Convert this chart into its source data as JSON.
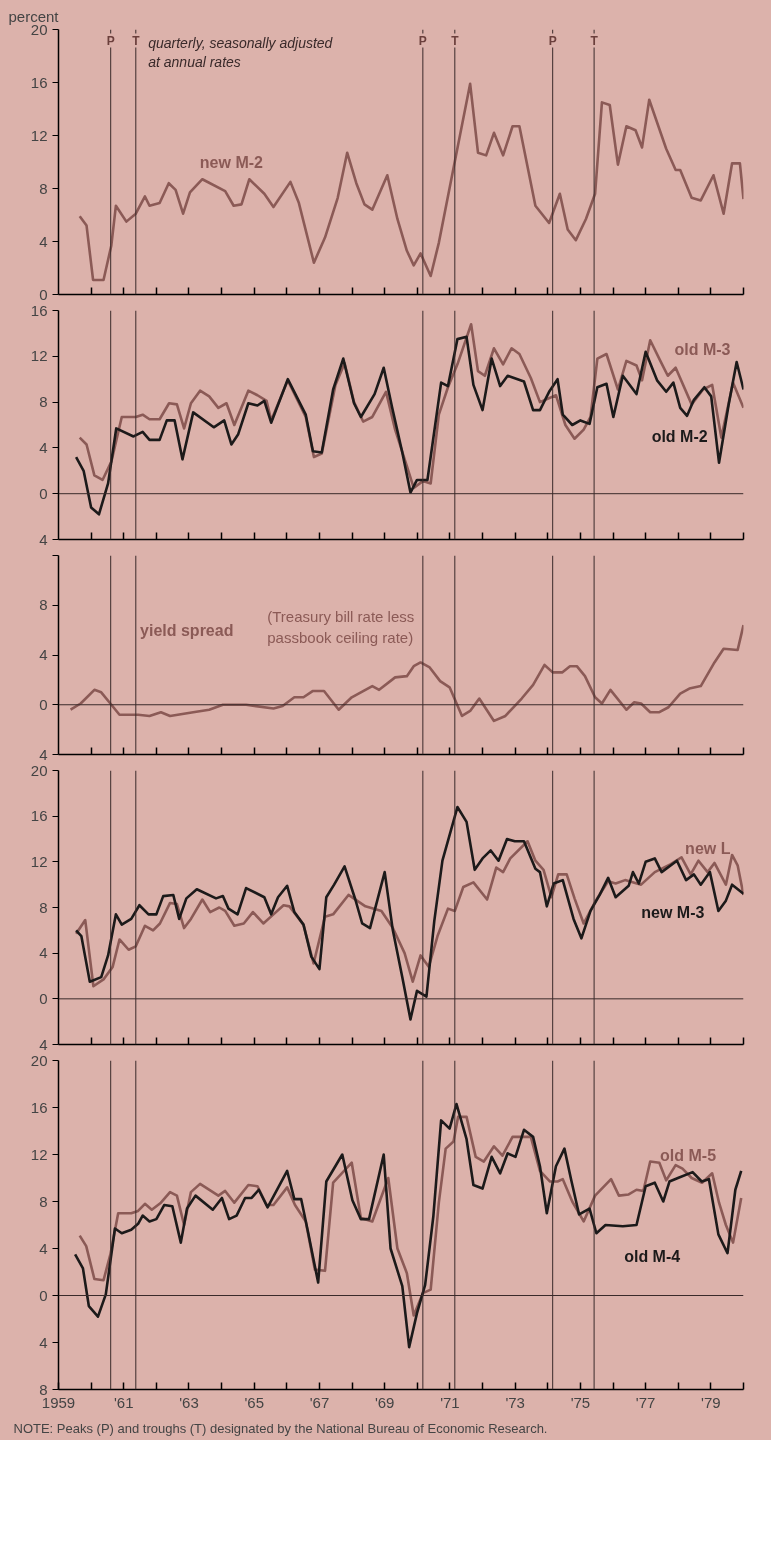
{
  "chart_data": [
    {
      "type": "line",
      "ylabel": "percent",
      "xlim": [
        1959,
        1980
      ],
      "xticks": [
        {
          "value": 1960,
          "label": null
        },
        {
          "value": 1961,
          "label": "'61"
        },
        {
          "value": 1962,
          "label": null
        },
        {
          "value": 1963,
          "label": "'63"
        },
        {
          "value": 1964,
          "label": null
        },
        {
          "value": 1965,
          "label": "'65"
        },
        {
          "value": 1966,
          "label": null
        },
        {
          "value": 1967,
          "label": "'67"
        },
        {
          "value": 1968,
          "label": null
        },
        {
          "value": 1969,
          "label": "'69"
        },
        {
          "value": 1970,
          "label": null
        },
        {
          "value": 1971,
          "label": "'71"
        },
        {
          "value": 1972,
          "label": null
        },
        {
          "value": 1973,
          "label": "'73"
        },
        {
          "value": 1974,
          "label": null
        },
        {
          "value": 1975,
          "label": "'75"
        },
        {
          "value": 1976,
          "label": null
        },
        {
          "value": 1977,
          "label": "'77"
        },
        {
          "value": 1978,
          "label": null
        },
        {
          "value": 1979,
          "label": "'79"
        },
        {
          "value": 1980,
          "label": null
        }
      ],
      "ylim": [
        0,
        20
      ],
      "yticks": [
        0,
        4,
        8,
        12,
        16,
        20
      ],
      "tick_labels": "y",
      "annotations": [
        "quarterly, seasonally adjusted at annual rates"
      ],
      "ref_lines": [
        {
          "axis": "x",
          "value": 1960.6,
          "label": "P"
        },
        {
          "axis": "x",
          "value": 1961.37,
          "label": "T"
        },
        {
          "axis": "x",
          "value": 1970.17,
          "label": "P"
        },
        {
          "axis": "x",
          "value": 1971.15,
          "label": "T"
        },
        {
          "axis": "x",
          "value": 1974.15,
          "label": "P"
        },
        {
          "axis": "x",
          "value": 1975.42,
          "label": "T"
        }
      ],
      "series": [
        {
          "name": "new M-2",
          "color": "#8b5a56",
          "x": [
            1959.65,
            1959.86,
            1960.06,
            1960.38,
            1960.62,
            1960.76,
            1961.08,
            1961.37,
            1961.65,
            1961.79,
            1962.1,
            1962.38,
            1962.59,
            1962.82,
            1963.03,
            1963.41,
            1964.11,
            1964.37,
            1964.61,
            1964.85,
            1965.31,
            1965.59,
            1966.11,
            1966.37,
            1966.83,
            1967.17,
            1967.56,
            1967.85,
            1968.13,
            1968.38,
            1968.62,
            1969.08,
            1969.39,
            1969.68,
            1969.89,
            1970.1,
            1970.41,
            1970.66,
            1971.13,
            1971.62,
            1971.86,
            1972.11,
            1972.35,
            1972.63,
            1972.92,
            1973.13,
            1973.62,
            1974.04,
            1974.37,
            1974.61,
            1974.86,
            1975.17,
            1975.45,
            1975.66,
            1975.9,
            1976.15,
            1976.41,
            1976.69,
            1976.89,
            1977.11,
            1977.63,
            1977.92,
            1978.06,
            1978.41,
            1978.69,
            1979.08,
            1979.39,
            1979.65,
            1979.89,
            1980.0
          ],
          "values": [
            5.9,
            5.2,
            1.1,
            1.1,
            3.7,
            6.7,
            5.5,
            6.1,
            7.4,
            6.7,
            6.9,
            8.4,
            7.9,
            6.1,
            7.7,
            8.7,
            7.8,
            6.7,
            6.8,
            8.7,
            7.6,
            6.6,
            8.5,
            6.9,
            2.4,
            4.3,
            7.3,
            10.7,
            8.4,
            6.8,
            6.4,
            9.0,
            5.7,
            3.3,
            2.2,
            3.1,
            1.4,
            3.9,
            9.8,
            15.9,
            10.7,
            10.5,
            12.2,
            10.5,
            12.7,
            12.7,
            6.7,
            5.4,
            7.6,
            4.9,
            4.1,
            5.7,
            7.6,
            14.5,
            14.3,
            9.8,
            12.7,
            12.4,
            11.1,
            14.7,
            11.0,
            9.4,
            9.4,
            7.3,
            7.1,
            9.0,
            6.1,
            9.9,
            9.9,
            7.2
          ]
        }
      ]
    },
    {
      "type": "line",
      "xlim": [
        1959,
        1980
      ],
      "xticks": [
        {
          "value": 1960,
          "label": null
        },
        {
          "value": 1961,
          "label": "'61"
        },
        {
          "value": 1962,
          "label": null
        },
        {
          "value": 1963,
          "label": "'63"
        },
        {
          "value": 1964,
          "label": null
        },
        {
          "value": 1965,
          "label": "'65"
        },
        {
          "value": 1966,
          "label": null
        },
        {
          "value": 1967,
          "label": "'67"
        },
        {
          "value": 1968,
          "label": null
        },
        {
          "value": 1969,
          "label": "'69"
        },
        {
          "value": 1970,
          "label": null
        },
        {
          "value": 1971,
          "label": "'71"
        },
        {
          "value": 1972,
          "label": null
        },
        {
          "value": 1973,
          "label": "'73"
        },
        {
          "value": 1974,
          "label": null
        },
        {
          "value": 1975,
          "label": "'75"
        },
        {
          "value": 1976,
          "label": null
        },
        {
          "value": 1977,
          "label": "'77"
        },
        {
          "value": 1978,
          "label": null
        },
        {
          "value": 1979,
          "label": "'79"
        },
        {
          "value": 1980,
          "label": null
        }
      ],
      "ylim": [
        -4,
        16
      ],
      "yticks": [
        {
          "value": -4,
          "label": "4"
        },
        0,
        4,
        8,
        12,
        16
      ],
      "tick_labels": "y",
      "ref_lines": [
        {
          "axis": "y",
          "value": 0
        },
        {
          "axis": "x",
          "value": 1960.6
        },
        {
          "axis": "x",
          "value": 1961.37
        },
        {
          "axis": "x",
          "value": 1970.17
        },
        {
          "axis": "x",
          "value": 1971.15
        },
        {
          "axis": "x",
          "value": 1974.15
        },
        {
          "axis": "x",
          "value": 1975.42
        }
      ],
      "series": [
        {
          "name": "old M-3",
          "color": "#8b5a56",
          "x": [
            1959.65,
            1959.86,
            1960.1,
            1960.35,
            1960.62,
            1960.94,
            1961.37,
            1961.58,
            1961.79,
            1962.1,
            1962.39,
            1962.63,
            1962.85,
            1963.06,
            1963.34,
            1963.62,
            1963.9,
            1964.15,
            1964.39,
            1964.82,
            1965.1,
            1965.38,
            1965.52,
            1966.03,
            1966.58,
            1966.83,
            1967.07,
            1967.49,
            1967.77,
            1968.06,
            1968.34,
            1968.62,
            1969.04,
            1969.32,
            1969.68,
            1969.89,
            1970.17,
            1970.41,
            1970.66,
            1970.94,
            1971.23,
            1971.65,
            1971.86,
            1972.07,
            1972.35,
            1972.63,
            1972.89,
            1973.13,
            1973.48,
            1973.76,
            1974.25,
            1974.54,
            1974.82,
            1975.1,
            1975.31,
            1975.52,
            1975.8,
            1976.15,
            1976.41,
            1976.72,
            1976.89,
            1977.14,
            1977.45,
            1977.68,
            1977.92,
            1978.41,
            1978.76,
            1979.04,
            1979.32,
            1979.68,
            1980.0
          ],
          "values": [
            4.9,
            4.3,
            1.6,
            1.2,
            2.8,
            6.7,
            6.7,
            6.9,
            6.5,
            6.5,
            7.9,
            7.8,
            5.7,
            7.9,
            9.0,
            8.5,
            7.5,
            7.9,
            6.0,
            9.0,
            8.6,
            8.1,
            6.4,
            9.9,
            6.7,
            3.2,
            3.5,
            9.5,
            11.4,
            8.0,
            6.3,
            6.7,
            8.9,
            5.6,
            2.4,
            0.5,
            1.1,
            0.9,
            6.9,
            9.3,
            11.3,
            14.8,
            10.7,
            10.3,
            12.7,
            11.3,
            12.7,
            12.2,
            10.1,
            8.0,
            8.6,
            6.0,
            4.8,
            5.6,
            6.7,
            11.8,
            12.2,
            9.1,
            11.6,
            11.2,
            9.9,
            13.4,
            11.6,
            10.3,
            11.0,
            7.8,
            9.1,
            9.5,
            4.9,
            9.7,
            7.5
          ]
        },
        {
          "name": "old M-2",
          "color": "#1c1a1a",
          "x": [
            1959.54,
            1959.77,
            1960.0,
            1960.24,
            1960.52,
            1960.77,
            1961.3,
            1961.58,
            1961.79,
            1962.1,
            1962.32,
            1962.56,
            1962.8,
            1963.13,
            1963.76,
            1964.08,
            1964.3,
            1964.51,
            1964.82,
            1965.1,
            1965.31,
            1965.52,
            1966.03,
            1966.58,
            1966.8,
            1967.07,
            1967.42,
            1967.73,
            1968.06,
            1968.27,
            1968.69,
            1968.97,
            1969.23,
            1969.54,
            1969.79,
            1969.99,
            1970.31,
            1970.73,
            1970.94,
            1971.23,
            1971.51,
            1971.72,
            1972.0,
            1972.28,
            1972.54,
            1972.77,
            1973.27,
            1973.55,
            1973.76,
            1974.04,
            1974.3,
            1974.46,
            1974.75,
            1975.0,
            1975.28,
            1975.52,
            1975.8,
            1976.01,
            1976.3,
            1976.72,
            1977.0,
            1977.35,
            1977.63,
            1977.85,
            1978.06,
            1978.27,
            1978.48,
            1978.8,
            1979.01,
            1979.25,
            1979.54,
            1979.79,
            1980.0
          ],
          "values": [
            3.2,
            2.0,
            -1.2,
            -1.8,
            0.9,
            5.7,
            5.0,
            5.4,
            4.7,
            4.7,
            6.4,
            6.4,
            3.0,
            7.1,
            5.8,
            6.4,
            4.3,
            5.2,
            7.9,
            7.7,
            8.1,
            6.2,
            10.0,
            6.9,
            3.7,
            3.6,
            9.1,
            11.8,
            7.9,
            6.7,
            8.7,
            11.0,
            7.5,
            3.6,
            0.1,
            1.2,
            1.2,
            9.7,
            9.4,
            13.5,
            13.7,
            9.5,
            7.3,
            11.8,
            9.4,
            10.3,
            9.8,
            7.3,
            7.3,
            8.9,
            10.0,
            6.9,
            6.0,
            6.4,
            6.1,
            9.3,
            9.6,
            6.7,
            10.3,
            8.7,
            12.4,
            9.9,
            8.9,
            9.7,
            7.5,
            6.8,
            8.2,
            9.3,
            8.5,
            2.7,
            7.7,
            11.5,
            9.1
          ]
        }
      ]
    },
    {
      "type": "line",
      "xlim": [
        1959,
        1980
      ],
      "xticks": [
        {
          "value": 1960,
          "label": null
        },
        {
          "value": 1961,
          "label": "'61"
        },
        {
          "value": 1962,
          "label": null
        },
        {
          "value": 1963,
          "label": "'63"
        },
        {
          "value": 1964,
          "label": null
        },
        {
          "value": 1965,
          "label": "'65"
        },
        {
          "value": 1966,
          "label": null
        },
        {
          "value": 1967,
          "label": "'67"
        },
        {
          "value": 1968,
          "label": null
        },
        {
          "value": 1969,
          "label": "'69"
        },
        {
          "value": 1970,
          "label": null
        },
        {
          "value": 1971,
          "label": "'71"
        },
        {
          "value": 1972,
          "label": null
        },
        {
          "value": 1973,
          "label": "'73"
        },
        {
          "value": 1974,
          "label": null
        },
        {
          "value": 1975,
          "label": "'75"
        },
        {
          "value": 1976,
          "label": null
        },
        {
          "value": 1977,
          "label": "'77"
        },
        {
          "value": 1978,
          "label": null
        },
        {
          "value": 1979,
          "label": "'79"
        },
        {
          "value": 1980,
          "label": null
        }
      ],
      "ylim": [
        -4,
        12
      ],
      "yticks": [
        {
          "value": -4,
          "label": "4"
        },
        0,
        4,
        8,
        {
          "value": 12,
          "label": null
        }
      ],
      "tick_labels": "y",
      "annotations": [
        "(Treasury bill rate less passbook ceiling rate)"
      ],
      "ref_lines": [
        {
          "axis": "y",
          "value": 0
        },
        {
          "axis": "x",
          "value": 1960.6
        },
        {
          "axis": "x",
          "value": 1961.37
        },
        {
          "axis": "x",
          "value": 1970.17
        },
        {
          "axis": "x",
          "value": 1971.15
        },
        {
          "axis": "x",
          "value": 1974.15
        },
        {
          "axis": "x",
          "value": 1975.42
        }
      ],
      "series": [
        {
          "name": "yield spread",
          "color": "#8b5a56",
          "x": [
            1959.37,
            1959.68,
            1960.1,
            1960.31,
            1960.59,
            1960.87,
            1961.44,
            1961.79,
            1962.14,
            1962.42,
            1963.13,
            1963.62,
            1964.04,
            1964.75,
            1965.59,
            1965.87,
            1966.23,
            1966.51,
            1966.79,
            1967.14,
            1967.59,
            1967.99,
            1968.62,
            1968.83,
            1969.32,
            1969.68,
            1969.89,
            1970.1,
            1970.38,
            1970.7,
            1970.99,
            1971.37,
            1971.62,
            1971.9,
            1972.35,
            1972.7,
            1973.2,
            1973.55,
            1973.9,
            1974.15,
            1974.44,
            1974.68,
            1974.89,
            1975.14,
            1975.45,
            1975.66,
            1975.92,
            1976.41,
            1976.65,
            1976.86,
            1977.14,
            1977.42,
            1977.7,
            1978.06,
            1978.34,
            1978.69,
            1979.11,
            1979.39,
            1979.82,
            1980.0
          ],
          "values": [
            -0.4,
            0.1,
            1.2,
            1.0,
            0.1,
            -0.8,
            -0.8,
            -0.9,
            -0.6,
            -0.9,
            -0.6,
            -0.4,
            0.0,
            0.0,
            -0.3,
            -0.1,
            0.6,
            0.6,
            1.1,
            1.1,
            -0.4,
            0.6,
            1.5,
            1.2,
            2.2,
            2.3,
            3.1,
            3.4,
            3.0,
            1.9,
            1.4,
            -0.9,
            -0.5,
            0.5,
            -1.3,
            -0.9,
            0.5,
            1.6,
            3.2,
            2.6,
            2.6,
            3.1,
            3.1,
            2.3,
            0.6,
            0.1,
            1.2,
            -0.4,
            0.2,
            0.1,
            -0.6,
            -0.6,
            -0.2,
            0.9,
            1.3,
            1.5,
            3.4,
            4.5,
            4.4,
            6.4
          ]
        }
      ]
    },
    {
      "type": "line",
      "xlim": [
        1959,
        1980
      ],
      "xticks": [
        {
          "value": 1960,
          "label": null
        },
        {
          "value": 1961,
          "label": "'61"
        },
        {
          "value": 1962,
          "label": null
        },
        {
          "value": 1963,
          "label": "'63"
        },
        {
          "value": 1964,
          "label": null
        },
        {
          "value": 1965,
          "label": "'65"
        },
        {
          "value": 1966,
          "label": null
        },
        {
          "value": 1967,
          "label": "'67"
        },
        {
          "value": 1968,
          "label": null
        },
        {
          "value": 1969,
          "label": "'69"
        },
        {
          "value": 1970,
          "label": null
        },
        {
          "value": 1971,
          "label": "'71"
        },
        {
          "value": 1972,
          "label": null
        },
        {
          "value": 1973,
          "label": "'73"
        },
        {
          "value": 1974,
          "label": null
        },
        {
          "value": 1975,
          "label": "'75"
        },
        {
          "value": 1976,
          "label": null
        },
        {
          "value": 1977,
          "label": "'77"
        },
        {
          "value": 1978,
          "label": null
        },
        {
          "value": 1979,
          "label": "'79"
        },
        {
          "value": 1980,
          "label": null
        }
      ],
      "ylim": [
        -4,
        20
      ],
      "yticks": [
        {
          "value": -4,
          "label": "4"
        },
        0,
        4,
        8,
        12,
        16,
        20
      ],
      "tick_labels": "y",
      "ref_lines": [
        {
          "axis": "y",
          "value": 0
        },
        {
          "axis": "x",
          "value": 1960.6
        },
        {
          "axis": "x",
          "value": 1961.37
        },
        {
          "axis": "x",
          "value": 1970.17
        },
        {
          "axis": "x",
          "value": 1971.15
        },
        {
          "axis": "x",
          "value": 1974.15
        },
        {
          "axis": "x",
          "value": 1975.42
        }
      ],
      "series": [
        {
          "name": "new L",
          "color": "#8b5a56",
          "x": [
            1959.54,
            1959.82,
            1960.07,
            1960.38,
            1960.66,
            1960.87,
            1961.15,
            1961.37,
            1961.65,
            1961.9,
            1962.11,
            1962.42,
            1962.63,
            1962.85,
            1963.06,
            1963.41,
            1963.65,
            1963.93,
            1964.11,
            1964.39,
            1964.68,
            1964.96,
            1965.28,
            1965.59,
            1965.9,
            1966.08,
            1966.51,
            1966.82,
            1967.17,
            1967.42,
            1967.89,
            1968.41,
            1968.9,
            1969.25,
            1969.61,
            1969.86,
            1970.1,
            1970.35,
            1970.62,
            1970.94,
            1971.15,
            1971.41,
            1971.72,
            1972.14,
            1972.42,
            1972.63,
            1972.85,
            1973.38,
            1973.62,
            1973.87,
            1974.11,
            1974.32,
            1974.58,
            1974.82,
            1975.1,
            1975.45,
            1975.85,
            1976.08,
            1976.37,
            1976.86,
            1977.28,
            1977.77,
            1978.1,
            1978.38,
            1978.62,
            1978.9,
            1979.11,
            1979.46,
            1979.65,
            1979.82,
            1980.0
          ],
          "values": [
            5.7,
            6.9,
            1.1,
            1.7,
            2.8,
            5.2,
            4.3,
            4.6,
            6.4,
            6.0,
            6.6,
            8.4,
            8.3,
            6.2,
            7.0,
            8.7,
            7.6,
            8.0,
            7.7,
            6.4,
            6.6,
            7.6,
            6.6,
            7.4,
            8.2,
            8.1,
            6.5,
            3.1,
            7.2,
            7.4,
            9.1,
            8.1,
            7.7,
            6.2,
            4.0,
            1.5,
            3.8,
            2.8,
            5.5,
            7.9,
            7.7,
            9.8,
            10.2,
            8.7,
            11.5,
            11.1,
            12.3,
            13.8,
            12.1,
            11.3,
            8.9,
            10.9,
            10.9,
            8.8,
            6.6,
            8.5,
            10.3,
            10.1,
            10.4,
            10.0,
            11.1,
            11.8,
            12.4,
            10.9,
            12.1,
            11.1,
            11.9,
            10.0,
            12.6,
            11.7,
            9.1
          ]
        },
        {
          "name": "new M-3",
          "color": "#1c1a1a",
          "x": [
            1959.54,
            1959.7,
            1959.96,
            1960.31,
            1960.52,
            1960.76,
            1960.94,
            1961.23,
            1961.48,
            1961.76,
            1962.0,
            1962.21,
            1962.52,
            1962.7,
            1962.92,
            1963.24,
            1963.83,
            1964.04,
            1964.21,
            1964.49,
            1964.75,
            1965.31,
            1965.52,
            1965.73,
            1966.01,
            1966.23,
            1966.51,
            1966.75,
            1967.0,
            1967.21,
            1967.45,
            1967.77,
            1968.1,
            1968.31,
            1968.55,
            1969.0,
            1969.25,
            1969.54,
            1969.79,
            1969.99,
            1970.28,
            1970.52,
            1970.77,
            1971.23,
            1971.51,
            1971.76,
            1972.0,
            1972.25,
            1972.49,
            1972.75,
            1972.99,
            1973.27,
            1973.62,
            1973.76,
            1973.97,
            1974.18,
            1974.46,
            1974.79,
            1975.03,
            1975.31,
            1975.59,
            1975.85,
            1976.08,
            1976.48,
            1976.61,
            1976.79,
            1977.0,
            1977.28,
            1977.49,
            1977.96,
            1978.24,
            1978.48,
            1978.69,
            1978.97,
            1979.23,
            1979.46,
            1979.65,
            1980.0
          ],
          "values": [
            6.0,
            5.5,
            1.5,
            1.9,
            3.8,
            7.4,
            6.5,
            7.0,
            8.2,
            7.4,
            7.4,
            9.0,
            9.1,
            7.0,
            8.8,
            9.6,
            8.8,
            9.0,
            7.9,
            7.4,
            9.7,
            8.9,
            7.4,
            8.9,
            9.9,
            7.6,
            6.5,
            3.7,
            2.6,
            8.9,
            10.0,
            11.6,
            8.7,
            6.6,
            6.2,
            11.1,
            6.0,
            1.9,
            -1.8,
            0.7,
            0.2,
            6.8,
            12.1,
            16.8,
            15.5,
            11.3,
            12.3,
            13.0,
            12.1,
            14.0,
            13.8,
            13.8,
            11.4,
            11.1,
            8.1,
            10.1,
            10.4,
            7.0,
            5.3,
            7.7,
            9.1,
            10.6,
            8.9,
            9.9,
            11.1,
            10.1,
            12.0,
            12.3,
            11.1,
            12.1,
            10.4,
            10.9,
            10.0,
            11.1,
            7.7,
            8.6,
            10.0,
            9.2
          ]
        }
      ]
    },
    {
      "type": "line",
      "xlim": [
        1959,
        1980
      ],
      "xticks": [
        1959,
        {
          "value": 1960,
          "label": null
        },
        {
          "value": 1961,
          "label": "'61"
        },
        {
          "value": 1962,
          "label": null
        },
        {
          "value": 1963,
          "label": "'63"
        },
        {
          "value": 1964,
          "label": null
        },
        {
          "value": 1965,
          "label": "'65"
        },
        {
          "value": 1966,
          "label": null
        },
        {
          "value": 1967,
          "label": "'67"
        },
        {
          "value": 1968,
          "label": null
        },
        {
          "value": 1969,
          "label": "'69"
        },
        {
          "value": 1970,
          "label": null
        },
        {
          "value": 1971,
          "label": "'71"
        },
        {
          "value": 1972,
          "label": null
        },
        {
          "value": 1973,
          "label": "'73"
        },
        {
          "value": 1974,
          "label": null
        },
        {
          "value": 1975,
          "label": "'75"
        },
        {
          "value": 1976,
          "label": null
        },
        {
          "value": 1977,
          "label": "'77"
        },
        {
          "value": 1978,
          "label": null
        },
        {
          "value": 1979,
          "label": "'79"
        },
        {
          "value": 1980,
          "label": null
        }
      ],
      "ylim": [
        -8,
        20
      ],
      "yticks": [
        {
          "value": -8,
          "label": "8"
        },
        {
          "value": -4,
          "label": "4"
        },
        0,
        4,
        8,
        12,
        16,
        20
      ],
      "annotations": [
        "NOTE: Peaks (P) and troughs (T) designated by the National Bureau of Economic Research."
      ],
      "ref_lines": [
        {
          "axis": "y",
          "value": 0
        },
        {
          "axis": "x",
          "value": 1960.6
        },
        {
          "axis": "x",
          "value": 1961.37
        },
        {
          "axis": "x",
          "value": 1970.17
        },
        {
          "axis": "x",
          "value": 1971.15
        },
        {
          "axis": "x",
          "value": 1974.15
        },
        {
          "axis": "x",
          "value": 1975.42
        }
      ],
      "series": [
        {
          "name": "old M-5",
          "color": "#8b5a56",
          "x": [
            1959.65,
            1959.85,
            1960.1,
            1960.38,
            1960.59,
            1960.83,
            1961.23,
            1961.44,
            1961.65,
            1961.86,
            1962.14,
            1962.42,
            1962.63,
            1962.85,
            1963.06,
            1963.34,
            1963.9,
            1964.11,
            1964.39,
            1964.82,
            1965.1,
            1965.38,
            1965.59,
            1966.01,
            1966.25,
            1966.58,
            1966.86,
            1967.17,
            1967.42,
            1967.99,
            1968.27,
            1968.62,
            1969.11,
            1969.39,
            1969.68,
            1969.89,
            1970.17,
            1970.41,
            1970.66,
            1970.87,
            1971.11,
            1971.25,
            1971.51,
            1971.79,
            1972.04,
            1972.35,
            1972.61,
            1972.92,
            1973.2,
            1973.48,
            1973.76,
            1974.07,
            1974.3,
            1974.46,
            1974.75,
            1975.1,
            1975.45,
            1975.94,
            1976.18,
            1976.48,
            1976.72,
            1976.93,
            1977.14,
            1977.42,
            1977.63,
            1977.92,
            1978.13,
            1978.41,
            1978.73,
            1979.04,
            1979.25,
            1979.46,
            1979.68,
            1979.93
          ],
          "values": [
            5.1,
            4.2,
            1.4,
            1.3,
            3.5,
            7.0,
            7.0,
            7.2,
            7.8,
            7.3,
            7.9,
            8.8,
            8.5,
            6.0,
            8.8,
            9.5,
            8.5,
            8.9,
            7.9,
            9.4,
            9.3,
            7.7,
            7.7,
            9.2,
            7.7,
            6.3,
            2.2,
            2.1,
            9.6,
            11.3,
            6.6,
            6.3,
            10.0,
            4.0,
            1.9,
            -1.7,
            0.2,
            0.5,
            7.9,
            12.5,
            13.1,
            15.2,
            15.2,
            11.8,
            11.4,
            12.7,
            11.9,
            13.5,
            13.5,
            13.5,
            10.6,
            9.7,
            9.7,
            9.9,
            8.0,
            6.3,
            8.5,
            9.9,
            8.5,
            8.6,
            9.0,
            8.9,
            11.4,
            11.3,
            9.8,
            11.1,
            10.8,
            10.0,
            9.6,
            10.4,
            7.9,
            6.0,
            4.5,
            8.3
          ]
        },
        {
          "name": "old M-4",
          "color": "#1c1a1a",
          "x": [
            1959.51,
            1959.75,
            1959.93,
            1960.21,
            1960.45,
            1960.73,
            1960.94,
            1961.23,
            1961.44,
            1961.58,
            1961.79,
            1962.0,
            1962.24,
            1962.49,
            1962.75,
            1962.94,
            1963.2,
            1963.73,
            1964.01,
            1964.23,
            1964.46,
            1964.72,
            1964.92,
            1965.14,
            1965.41,
            1966.01,
            1966.23,
            1966.44,
            1966.65,
            1966.96,
            1967.21,
            1967.7,
            1968.01,
            1968.27,
            1968.52,
            1968.97,
            1969.18,
            1969.54,
            1969.75,
            1969.99,
            1970.24,
            1970.49,
            1970.73,
            1970.99,
            1971.2,
            1971.51,
            1971.72,
            1972.0,
            1972.28,
            1972.54,
            1972.77,
            1973.01,
            1973.27,
            1973.55,
            1973.76,
            1973.97,
            1974.25,
            1974.51,
            1974.72,
            1974.96,
            1975.28,
            1975.49,
            1975.77,
            1976.3,
            1976.72,
            1977.0,
            1977.28,
            1977.54,
            1977.73,
            1977.99,
            1978.44,
            1978.72,
            1978.94,
            1979.23,
            1979.51,
            1979.75,
            1979.93
          ],
          "values": [
            3.5,
            2.3,
            -0.9,
            -1.8,
            0.1,
            5.7,
            5.3,
            5.6,
            6.1,
            6.8,
            6.3,
            6.5,
            7.7,
            7.6,
            4.5,
            7.4,
            8.5,
            7.3,
            8.3,
            6.5,
            6.8,
            8.3,
            8.3,
            9.0,
            7.5,
            10.6,
            8.2,
            8.2,
            5.4,
            1.1,
            9.7,
            12.0,
            8.1,
            6.5,
            6.5,
            12.0,
            4.0,
            0.8,
            -4.4,
            -1.5,
            0.9,
            6.7,
            14.9,
            14.2,
            16.3,
            13.3,
            9.4,
            9.1,
            11.8,
            10.4,
            12.1,
            11.8,
            14.1,
            13.5,
            11.0,
            7.0,
            11.0,
            12.5,
            9.8,
            6.9,
            7.4,
            5.3,
            6.0,
            5.9,
            6.0,
            9.3,
            9.6,
            8.0,
            9.7,
            10.0,
            10.5,
            9.7,
            9.9,
            5.2,
            3.6,
            9.0,
            10.6
          ]
        }
      ]
    }
  ]
}
